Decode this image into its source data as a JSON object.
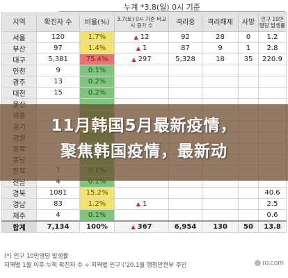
{
  "caption": "누계 *3.8(일) 0시 기준",
  "headers": {
    "region": "지역",
    "cases": "확진자 수",
    "ratio": "비율(%)",
    "delta": "3.7(토) 0시 기준 비교 시 증가 수",
    "isolated": "격리중",
    "released": "격리해제",
    "deaths": "사망",
    "incidence": "인구 10만명당 발생률"
  },
  "rows": [
    {
      "region": "서울",
      "cases": "120",
      "ratio": "1.7%",
      "ratio_color": "yellow",
      "delta": "12",
      "isolated": "92",
      "released": "28",
      "deaths": "0",
      "incidence": "1.2"
    },
    {
      "region": "부산",
      "cases": "97",
      "ratio": "1.4%",
      "ratio_color": "yellow",
      "delta": "1",
      "isolated": "87",
      "released": "9",
      "deaths": "1",
      "incidence": "2.8"
    },
    {
      "region": "대구",
      "cases": "5,381",
      "ratio": "75.4%",
      "ratio_color": "red",
      "delta": "297",
      "isolated": "5,328",
      "released": "18",
      "deaths": "35",
      "incidence": "220.9"
    },
    {
      "region": "인천",
      "cases": "9",
      "ratio": "0.1%",
      "ratio_color": "green",
      "delta": "",
      "isolated": "",
      "released": "",
      "deaths": "",
      "incidence": ""
    },
    {
      "region": "광주",
      "cases": "13",
      "ratio": "0.2%",
      "ratio_color": "green",
      "delta": "",
      "isolated": "",
      "released": "",
      "deaths": "",
      "incidence": ""
    },
    {
      "region": "대전",
      "cases": "15",
      "ratio": "0.2%",
      "ratio_color": "green",
      "delta": "",
      "isolated": "",
      "released": "",
      "deaths": "",
      "incidence": ""
    },
    {
      "region": "울산",
      "cases": "",
      "ratio": "",
      "ratio_color": "green",
      "delta": "",
      "isolated": "",
      "released": "",
      "deaths": "",
      "incidence": ""
    },
    {
      "region": "세종",
      "cases": "",
      "ratio": "",
      "ratio_color": "green",
      "delta": "",
      "isolated": "",
      "released": "",
      "deaths": "",
      "incidence": ""
    },
    {
      "region": "경기",
      "cases": "",
      "ratio": "",
      "ratio_color": "yellow",
      "delta": "",
      "isolated": "",
      "released": "",
      "deaths": "",
      "incidence": ""
    },
    {
      "region": "강원",
      "cases": "",
      "ratio": "",
      "ratio_color": "green",
      "delta": "",
      "isolated": "",
      "released": "",
      "deaths": "",
      "incidence": ""
    },
    {
      "region": "충북",
      "cases": "",
      "ratio": "",
      "ratio_color": "green",
      "delta": "",
      "isolated": "",
      "released": "",
      "deaths": "",
      "incidence": ""
    },
    {
      "region": "충남",
      "cases": "",
      "ratio": "",
      "ratio_color": "green",
      "delta": "",
      "isolated": "",
      "released": "",
      "deaths": "",
      "incidence": ""
    },
    {
      "region": "전북",
      "cases": "7",
      "ratio": "0.1%",
      "ratio_color": "green",
      "delta": "",
      "isolated": "",
      "released": "",
      "deaths": "",
      "incidence": ""
    },
    {
      "region": "전남",
      "cases": "4",
      "ratio": "0.1%",
      "ratio_color": "green",
      "delta": "",
      "isolated": "",
      "released": "",
      "deaths": "",
      "incidence": ""
    },
    {
      "region": "경북",
      "cases": "1081",
      "ratio": "15.2%",
      "ratio_color": "yellow",
      "delta": "",
      "isolated": "",
      "released": "",
      "deaths": "",
      "incidence": "40.6"
    },
    {
      "region": "경남",
      "cases": "83",
      "ratio": "1.2%",
      "ratio_color": "yellow",
      "delta": "1",
      "isolated": "",
      "released": "",
      "deaths": "",
      "incidence": "2.5"
    },
    {
      "region": "제주",
      "cases": "4",
      "ratio": "0.1%",
      "ratio_color": "green",
      "delta": "",
      "isolated": "",
      "released": "",
      "deaths": "",
      "incidence": "0.6"
    }
  ],
  "total": {
    "region": "합계",
    "cases": "7,134",
    "ratio": "100%",
    "delta": "367",
    "isolated": "6,954",
    "released": "130",
    "deaths": "50",
    "incidence": "13.8"
  },
  "banner_title": "11月韩国5月最新疫情，\n聚焦韩国疫情，最新动",
  "note1": "(*) 인구 10만명당 발생률",
  "note2": "지역별 1월 이후 누적 확진자 수 ÷ 지역별 인구 ('20.1월 행정안전부 주민",
  "watermark": "ro.com"
}
